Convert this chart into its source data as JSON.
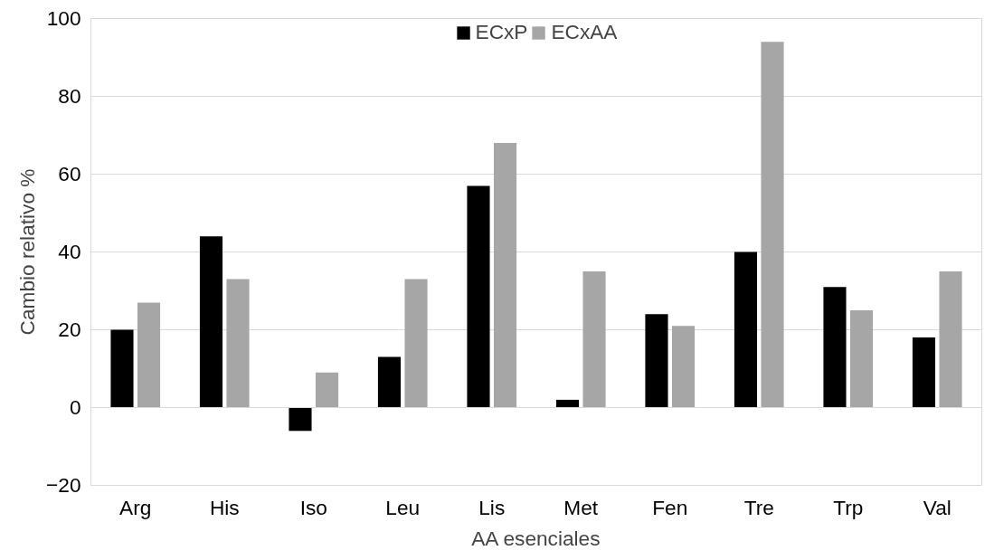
{
  "chart_data": {
    "type": "bar",
    "xlabel": "AA esenciales",
    "ylabel": "Cambio relativo %",
    "categories": [
      "Arg",
      "His",
      "Iso",
      "Leu",
      "Lis",
      "Met",
      "Fen",
      "Tre",
      "Trp",
      "Val"
    ],
    "series": [
      {
        "name": "ECxP",
        "color": "#000000",
        "values": [
          20,
          44,
          -6,
          13,
          57,
          2,
          24,
          40,
          31,
          18
        ]
      },
      {
        "name": "ECxAA",
        "color": "#a6a6a6",
        "values": [
          27,
          33,
          9,
          33,
          68,
          35,
          21,
          94,
          25,
          35
        ]
      }
    ],
    "ylim": [
      -20,
      100
    ],
    "yticks": [
      -20,
      0,
      20,
      40,
      60,
      80,
      100
    ],
    "grid": "y",
    "legend": "top"
  }
}
